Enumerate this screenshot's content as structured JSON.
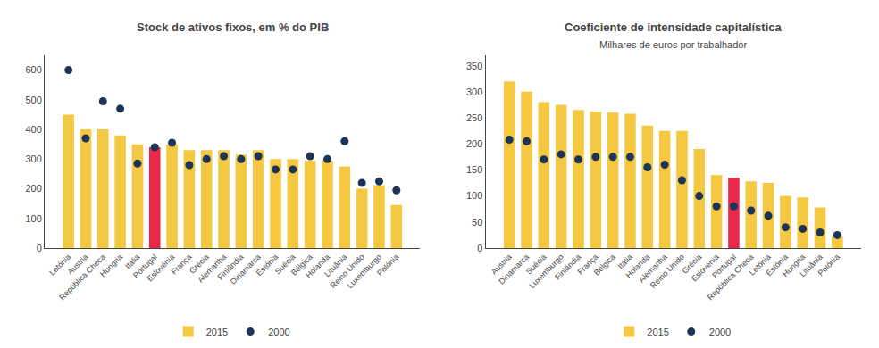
{
  "chart_data": [
    {
      "type": "bar",
      "title": "Stock de ativos fixos, em % do PIB",
      "categories": [
        "Letónia",
        "Austria",
        "República Checa",
        "Hungria",
        "Itália",
        "Portugal",
        "Eslovénia",
        "França",
        "Grécia",
        "Alemanha",
        "Finlândia",
        "Dinamarca",
        "Estónia",
        "Suécia",
        "Bélgica",
        "Holanda",
        "Lituânia",
        "Reino Unido",
        "Luxemburgo",
        "Polónia"
      ],
      "series": [
        {
          "name": "2015",
          "type": "bar",
          "colors": [
            "#F5C842",
            "#F5C842",
            "#F5C842",
            "#F5C842",
            "#F5C842",
            "#E8294A",
            "#F5C842",
            "#F5C842",
            "#F5C842",
            "#F5C842",
            "#F5C842",
            "#F5C842",
            "#F5C842",
            "#F5C842",
            "#F5C842",
            "#F5C842",
            "#F5C842",
            "#F5C842",
            "#F5C842",
            "#F5C842"
          ],
          "values": [
            450,
            400,
            400,
            380,
            350,
            340,
            350,
            330,
            330,
            330,
            315,
            330,
            300,
            300,
            295,
            295,
            275,
            200,
            212,
            145
          ]
        },
        {
          "name": "2000",
          "type": "scatter",
          "color": "#1C3557",
          "marker": "circle",
          "values": [
            600,
            370,
            495,
            470,
            285,
            340,
            355,
            280,
            300,
            310,
            300,
            310,
            265,
            265,
            310,
            300,
            360,
            220,
            225,
            195
          ]
        }
      ],
      "ylim": [
        0,
        650
      ],
      "yticks": [
        0,
        100,
        200,
        300,
        400,
        500,
        600
      ],
      "grid": false,
      "legend": "bottom"
    },
    {
      "type": "bar",
      "title": "Coeficiente de intensidade capitalística",
      "subtitle": "Milhares de euros por trabalhador",
      "categories": [
        "Austria",
        "Dinamarca",
        "Suécia",
        "Luxemburgo",
        "Finlândia",
        "França",
        "Bélgica",
        "Itália",
        "Holanda",
        "Alemanha",
        "Reino Unido",
        "Grécia",
        "Eslovénia",
        "Portugal",
        "República Checa",
        "Letónia",
        "Estónia",
        "Hungria",
        "Lituânia",
        "Polónia"
      ],
      "series": [
        {
          "name": "2015",
          "type": "bar",
          "colors": [
            "#F5C842",
            "#F5C842",
            "#F5C842",
            "#F5C842",
            "#F5C842",
            "#F5C842",
            "#F5C842",
            "#F5C842",
            "#F5C842",
            "#F5C842",
            "#F5C842",
            "#F5C842",
            "#F5C842",
            "#E8294A",
            "#F5C842",
            "#F5C842",
            "#F5C842",
            "#F5C842",
            "#F5C842",
            "#F5C842"
          ],
          "values": [
            320,
            300,
            280,
            275,
            265,
            262,
            260,
            258,
            235,
            225,
            225,
            190,
            140,
            135,
            128,
            125,
            100,
            97,
            78,
            22
          ]
        },
        {
          "name": "2000",
          "type": "scatter",
          "color": "#1C3557",
          "marker": "circle",
          "values": [
            208,
            205,
            170,
            180,
            170,
            175,
            175,
            175,
            155,
            160,
            130,
            100,
            80,
            80,
            72,
            62,
            40,
            37,
            30,
            25
          ]
        }
      ],
      "ylim": [
        0,
        370
      ],
      "yticks": [
        0,
        50,
        100,
        150,
        200,
        250,
        300,
        350
      ],
      "grid": false,
      "legend": "bottom"
    }
  ]
}
